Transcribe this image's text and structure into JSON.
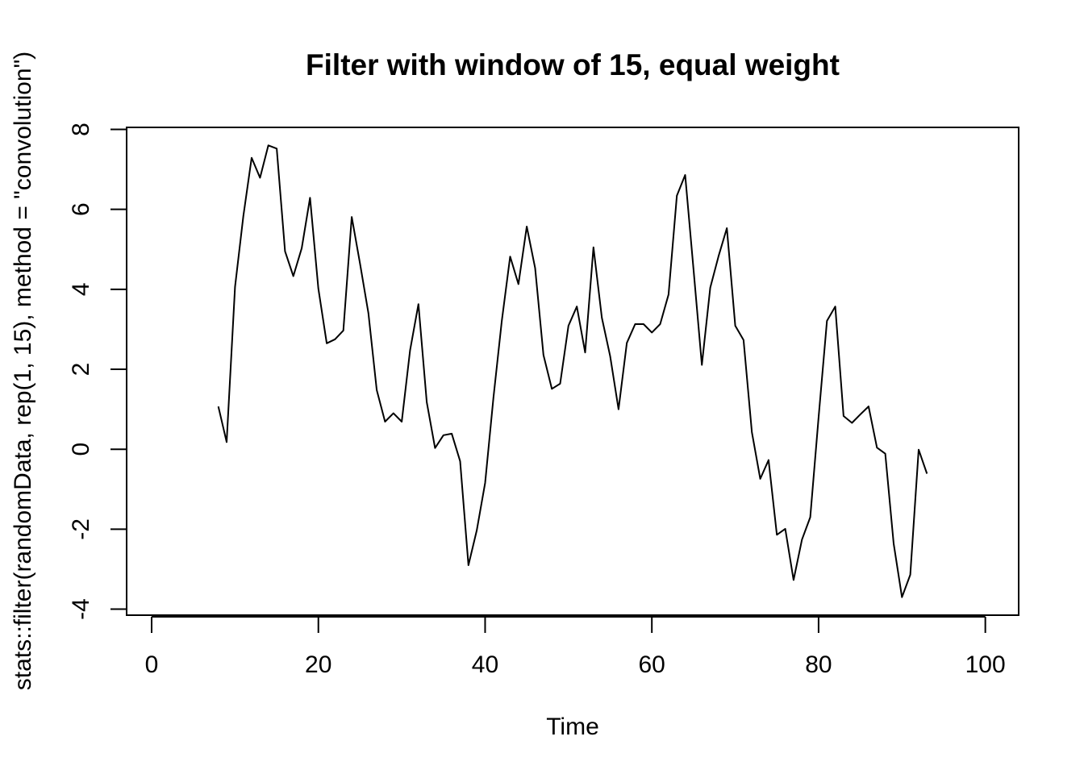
{
  "chart_data": {
    "type": "line",
    "title": "Filter with window of 15, equal weight",
    "xlabel": "Time",
    "ylabel": "stats::filter(randomData, rep(1, 15), method = \"convolution\")",
    "xlim": [
      -3,
      104
    ],
    "ylim": [
      -4.15,
      8.05
    ],
    "x_ticks": [
      0,
      20,
      40,
      60,
      80,
      100
    ],
    "x_tick_labels": [
      "0",
      "20",
      "40",
      "60",
      "80",
      "100"
    ],
    "y_ticks": [
      -4,
      -2,
      0,
      2,
      4,
      6,
      8
    ],
    "y_tick_labels": [
      "-4",
      "-2",
      "0",
      "2",
      "4",
      "6",
      "8"
    ],
    "grid": false,
    "frame": true,
    "colors": {
      "line": "#000000",
      "background": "#ffffff"
    },
    "series": [
      {
        "x": [
          8,
          9,
          10,
          11,
          12,
          13,
          14,
          15,
          16,
          17,
          18,
          19,
          20,
          21,
          22,
          23,
          24,
          25,
          26,
          27,
          28,
          29,
          30,
          31,
          32,
          33,
          34,
          35,
          36,
          37,
          38,
          39,
          40,
          41,
          42,
          43,
          44,
          45,
          46,
          47,
          48,
          49,
          50,
          51,
          52,
          53,
          54,
          55,
          56,
          57,
          58,
          59,
          60,
          61,
          62,
          63,
          64,
          65,
          66,
          67,
          68,
          69,
          70,
          71,
          72,
          73,
          74,
          75,
          76,
          77,
          78,
          79,
          80,
          81,
          82,
          83,
          84,
          85,
          86,
          87,
          88,
          89,
          90,
          91,
          92,
          93
        ],
        "y": [
          1.07,
          0.18,
          4.06,
          5.83,
          7.29,
          6.79,
          7.6,
          7.52,
          4.95,
          4.33,
          5.03,
          6.29,
          4.02,
          2.65,
          2.75,
          2.97,
          5.81,
          4.64,
          3.4,
          1.48,
          0.69,
          0.9,
          0.69,
          2.47,
          3.63,
          1.18,
          0.03,
          0.35,
          0.39,
          -0.3,
          -2.9,
          -2.03,
          -0.84,
          1.29,
          3.2,
          4.82,
          4.13,
          5.57,
          4.53,
          2.36,
          1.51,
          1.64,
          3.09,
          3.57,
          2.42,
          5.05,
          3.29,
          2.33,
          1.0,
          2.66,
          3.13,
          3.13,
          2.92,
          3.13,
          3.87,
          6.34,
          6.86,
          4.49,
          2.11,
          4.04,
          4.83,
          5.53,
          3.09,
          2.73,
          0.43,
          -0.74,
          -0.27,
          -2.14,
          -1.99,
          -3.27,
          -2.26,
          -1.7,
          0.79,
          3.21,
          3.57,
          0.83,
          0.66,
          0.87,
          1.07,
          0.04,
          -0.11,
          -2.36,
          -3.7,
          -3.14,
          -0.01,
          -0.61
        ]
      }
    ]
  }
}
